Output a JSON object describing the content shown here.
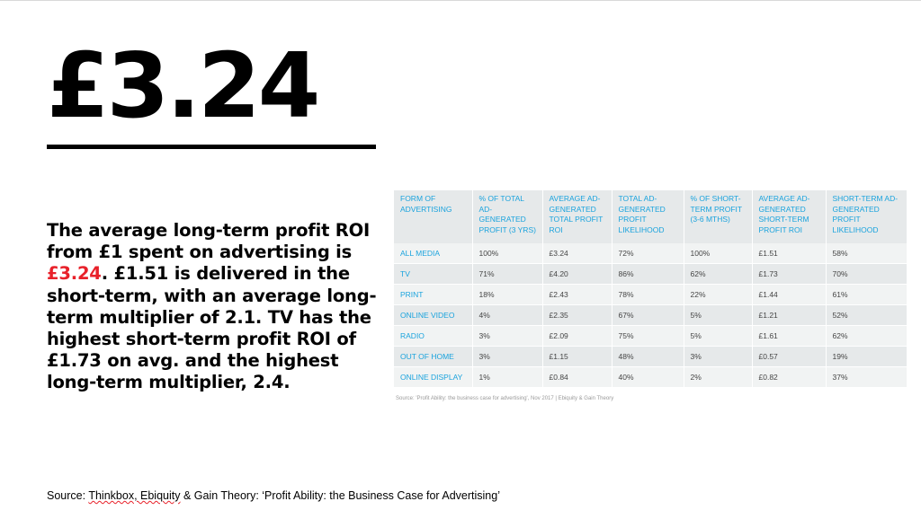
{
  "headline": "£3.24",
  "paragraph": {
    "part1": "The average long-term profit ROI from £1 spent on advertising is ",
    "highlight": "£3.24",
    "part2": ". £1.51 is delivered in the short-term, with an average long-term multiplier of 2.1. TV has the highest short-term profit ROI of £1.73 on avg. and the highest long-term multiplier, 2.4."
  },
  "colors": {
    "accent_red": "#e8212a",
    "table_blue": "#1aa3dd"
  },
  "table": {
    "headers": [
      "FORM OF ADVERTISING",
      "% OF TOTAL AD-GENERATED PROFIT (3 YRS)",
      "AVERAGE AD-GENERATED TOTAL PROFIT ROI",
      "TOTAL AD-GENERATED PROFIT LIKELIHOOD",
      "% OF SHORT-TERM PROFIT (3-6 MTHS)",
      "AVERAGE AD-GENERATED SHORT-TERM PROFIT ROI",
      "SHORT-TERM AD-GENERATED PROFIT LIKELIHOOD"
    ],
    "rows": [
      [
        "ALL MEDIA",
        "100%",
        "£3.24",
        "72%",
        "100%",
        "£1.51",
        "58%"
      ],
      [
        "TV",
        "71%",
        "£4.20",
        "86%",
        "62%",
        "£1.73",
        "70%"
      ],
      [
        "PRINT",
        "18%",
        "£2.43",
        "78%",
        "22%",
        "£1.44",
        "61%"
      ],
      [
        "ONLINE VIDEO",
        "4%",
        "£2.35",
        "67%",
        "5%",
        "£1.21",
        "52%"
      ],
      [
        "RADIO",
        "3%",
        "£2.09",
        "75%",
        "5%",
        "£1.61",
        "62%"
      ],
      [
        "OUT OF HOME",
        "3%",
        "£1.15",
        "48%",
        "3%",
        "£0.57",
        "19%"
      ],
      [
        "ONLINE DISPLAY",
        "1%",
        "£0.84",
        "40%",
        "2%",
        "£0.82",
        "37%"
      ]
    ],
    "source": "Source: 'Profit Ability: the business case for advertising', Nov 2017 | Ebiquity & Gain Theory"
  },
  "source": {
    "label": "Source:",
    "names": "Thinkbox, Ebiquity",
    "rest": " & Gain Theory: ‘Profit Ability: the Business Case for Advertising’"
  }
}
